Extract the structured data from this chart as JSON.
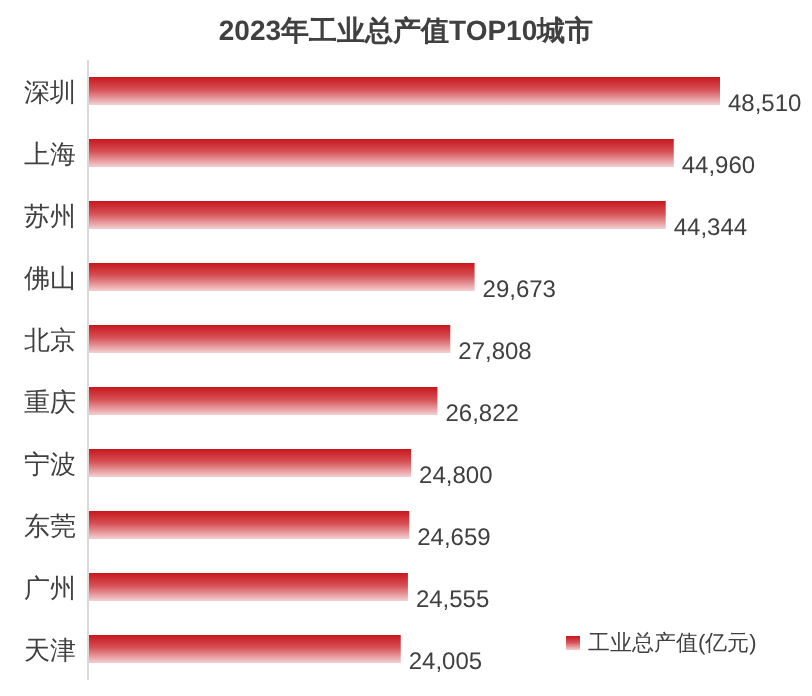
{
  "chart_data": {
    "type": "bar",
    "orientation": "horizontal",
    "title": "2023年工业总产值TOP10城市",
    "categories": [
      "深圳",
      "上海",
      "苏州",
      "佛山",
      "北京",
      "重庆",
      "宁波",
      "东莞",
      "广州",
      "天津"
    ],
    "series": [
      {
        "name": "工业总产值(亿元)",
        "color": "#c8161d",
        "values": [
          48510,
          44960,
          44344,
          29673,
          27808,
          26822,
          24800,
          24659,
          24555,
          24005
        ],
        "value_labels": [
          "48,510",
          "44,960",
          "44,344",
          "29,673",
          "27,808",
          "26,822",
          "24,800",
          "24,659",
          "24,555",
          "24,005"
        ]
      }
    ],
    "legend": "bottom right"
  }
}
